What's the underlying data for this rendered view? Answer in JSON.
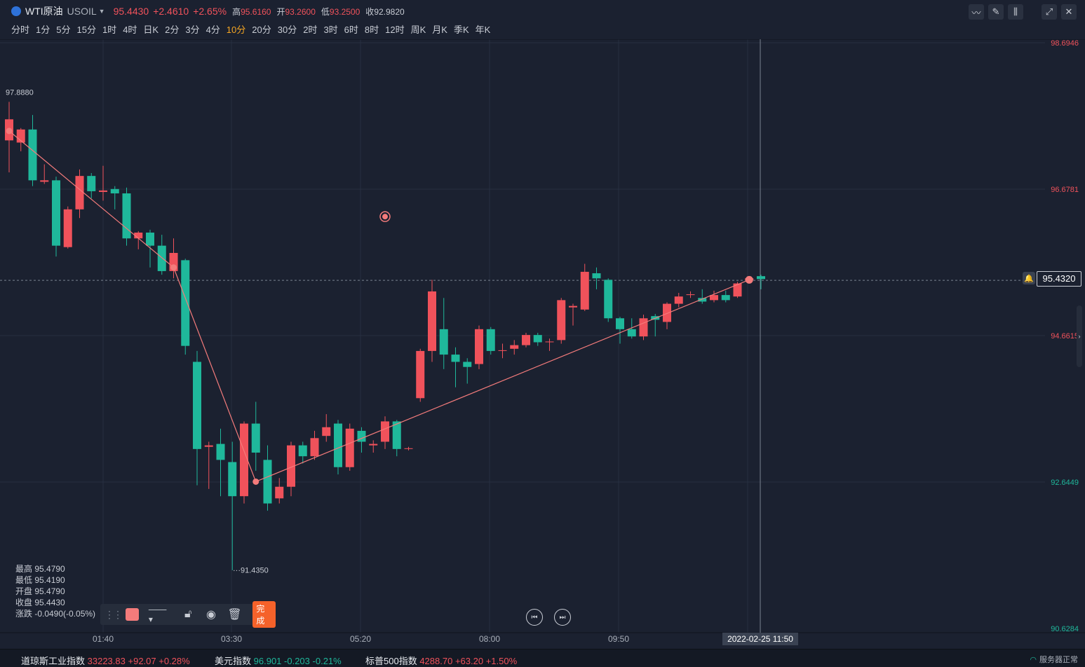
{
  "header": {
    "name": "WTI原油",
    "code": "USOIL",
    "price": "95.4430",
    "change": "+2.4610",
    "change_pct": "+2.65%",
    "high_label": "高",
    "high": "95.6160",
    "open_label": "开",
    "open": "93.2600",
    "low_label": "低",
    "low": "93.2500",
    "close_label": "收",
    "close": "92.9820"
  },
  "periods": [
    "分时",
    "1分",
    "5分",
    "15分",
    "1时",
    "4时",
    "日K",
    "2分",
    "3分",
    "4分",
    "10分",
    "20分",
    "30分",
    "2时",
    "3时",
    "6时",
    "8时",
    "12时",
    "周K",
    "月K",
    "季K",
    "年K"
  ],
  "active_period": "10分",
  "tools": [
    "indicator-icon",
    "draw-icon",
    "candle-type-icon",
    "fullscreen-icon",
    "close-icon"
  ],
  "price_axis": [
    "98.6946",
    "96.6781",
    "94.6615",
    "92.6449",
    "90.6284"
  ],
  "time_axis": [
    "01:40",
    "03:30",
    "05:20",
    "08:00",
    "09:50"
  ],
  "marks": {
    "period_high": "97.8880",
    "period_low": "91.4350"
  },
  "current_price": "95.4320",
  "crosshair_time": "2022-02-25 11:50",
  "ohlc_panel": [
    {
      "label": "最高",
      "value": "95.4790"
    },
    {
      "label": "最低",
      "value": "95.4190"
    },
    {
      "label": "开盘",
      "value": "95.4790"
    },
    {
      "label": "收盘",
      "value": "95.4430"
    },
    {
      "label": "涨跌",
      "value": "-0.0490(-0.05%)"
    }
  ],
  "draw_toolbar": {
    "color": "#f47b7b",
    "done_label": "完成"
  },
  "footer": {
    "items": [
      {
        "name": "道琼斯工业指数",
        "value": "33223.83",
        "chg": "+92.07",
        "pct": "+0.28%",
        "up": true
      },
      {
        "name": "美元指数",
        "value": "96.901",
        "chg": "-0.203",
        "pct": "-0.21%",
        "up": false
      },
      {
        "name": "标普500指数",
        "value": "4288.70",
        "chg": "+63.20",
        "pct": "+1.50%",
        "up": true
      }
    ],
    "server_status": "服务器正常"
  },
  "colors": {
    "up": "#f0525b",
    "down": "#1fb89b",
    "line": "#f47b7b",
    "background": "#1b2130",
    "grid": "#273041"
  },
  "chart_data": {
    "type": "candlestick",
    "ylim": [
      90.6284,
      98.6946
    ],
    "candles": [
      {
        "o": 97.35,
        "c": 97.64,
        "h": 97.88,
        "l": 96.91
      },
      {
        "o": 97.32,
        "c": 97.5,
        "h": 97.52,
        "l": 97.2
      },
      {
        "o": 97.5,
        "c": 96.8,
        "h": 97.7,
        "l": 96.72
      },
      {
        "o": 96.78,
        "c": 96.8,
        "h": 97.02,
        "l": 96.75
      },
      {
        "o": 96.8,
        "c": 95.9,
        "h": 96.85,
        "l": 95.75
      },
      {
        "o": 95.88,
        "c": 96.4,
        "h": 96.44,
        "l": 95.86
      },
      {
        "o": 96.4,
        "c": 96.86,
        "h": 96.95,
        "l": 96.28
      },
      {
        "o": 96.86,
        "c": 96.65,
        "h": 96.9,
        "l": 96.55
      },
      {
        "o": 96.64,
        "c": 96.66,
        "h": 97.0,
        "l": 96.52
      },
      {
        "o": 96.68,
        "c": 96.62,
        "h": 96.72,
        "l": 96.4
      },
      {
        "o": 96.62,
        "c": 96.0,
        "h": 96.7,
        "l": 95.9
      },
      {
        "o": 96.0,
        "c": 96.08,
        "h": 96.1,
        "l": 95.85
      },
      {
        "o": 96.08,
        "c": 95.9,
        "h": 96.12,
        "l": 95.6
      },
      {
        "o": 95.9,
        "c": 95.55,
        "h": 96.05,
        "l": 95.5
      },
      {
        "o": 95.55,
        "c": 95.8,
        "h": 96.0,
        "l": 95.45
      },
      {
        "o": 95.7,
        "c": 94.52,
        "h": 95.72,
        "l": 94.4
      },
      {
        "o": 94.3,
        "c": 93.1,
        "h": 94.45,
        "l": 92.6
      },
      {
        "o": 93.13,
        "c": 93.15,
        "h": 93.2,
        "l": 92.55
      },
      {
        "o": 93.17,
        "c": 92.95,
        "h": 93.38,
        "l": 92.45
      },
      {
        "o": 92.92,
        "c": 92.45,
        "h": 93.2,
        "l": 91.43
      },
      {
        "o": 92.45,
        "c": 93.45,
        "h": 93.48,
        "l": 92.35
      },
      {
        "o": 93.45,
        "c": 93.05,
        "h": 93.75,
        "l": 92.8
      },
      {
        "o": 92.95,
        "c": 92.35,
        "h": 93.15,
        "l": 92.25
      },
      {
        "o": 92.42,
        "c": 92.58,
        "h": 92.7,
        "l": 92.35
      },
      {
        "o": 92.58,
        "c": 93.15,
        "h": 93.2,
        "l": 92.45
      },
      {
        "o": 93.15,
        "c": 93.0,
        "h": 93.2,
        "l": 92.9
      },
      {
        "o": 93.0,
        "c": 93.25,
        "h": 93.35,
        "l": 92.95
      },
      {
        "o": 93.28,
        "c": 93.4,
        "h": 93.58,
        "l": 93.2
      },
      {
        "o": 93.45,
        "c": 92.85,
        "h": 93.5,
        "l": 92.75
      },
      {
        "o": 92.85,
        "c": 93.38,
        "h": 93.45,
        "l": 92.8
      },
      {
        "o": 93.35,
        "c": 93.2,
        "h": 93.4,
        "l": 93.05
      },
      {
        "o": 93.15,
        "c": 93.17,
        "h": 93.22,
        "l": 93.05
      },
      {
        "o": 93.2,
        "c": 93.48,
        "h": 93.55,
        "l": 93.1
      },
      {
        "o": 93.48,
        "c": 93.1,
        "h": 93.5,
        "l": 93.0
      },
      {
        "o": 93.1,
        "c": 93.11,
        "h": 93.13,
        "l": 93.08
      },
      {
        "o": 93.8,
        "c": 94.45,
        "h": 94.48,
        "l": 93.75
      },
      {
        "o": 94.45,
        "c": 95.27,
        "h": 95.43,
        "l": 94.3
      },
      {
        "o": 94.75,
        "c": 94.4,
        "h": 95.18,
        "l": 94.2
      },
      {
        "o": 94.4,
        "c": 94.3,
        "h": 94.5,
        "l": 93.95
      },
      {
        "o": 94.3,
        "c": 94.23,
        "h": 94.35,
        "l": 94.0
      },
      {
        "o": 94.27,
        "c": 94.75,
        "h": 94.8,
        "l": 94.2
      },
      {
        "o": 94.75,
        "c": 94.45,
        "h": 94.78,
        "l": 94.4
      },
      {
        "o": 94.45,
        "c": 94.46,
        "h": 94.55,
        "l": 94.35
      },
      {
        "o": 94.48,
        "c": 94.53,
        "h": 94.6,
        "l": 94.4
      },
      {
        "o": 94.53,
        "c": 94.67,
        "h": 94.7,
        "l": 94.5
      },
      {
        "o": 94.67,
        "c": 94.57,
        "h": 94.7,
        "l": 94.52
      },
      {
        "o": 94.57,
        "c": 94.58,
        "h": 94.62,
        "l": 94.45
      },
      {
        "o": 94.6,
        "c": 95.15,
        "h": 95.18,
        "l": 94.55
      },
      {
        "o": 95.05,
        "c": 95.07,
        "h": 95.1,
        "l": 94.8
      },
      {
        "o": 95.02,
        "c": 95.54,
        "h": 95.65,
        "l": 95.0
      },
      {
        "o": 95.52,
        "c": 95.45,
        "h": 95.6,
        "l": 95.3
      },
      {
        "o": 95.43,
        "c": 94.9,
        "h": 95.45,
        "l": 94.85
      },
      {
        "o": 94.9,
        "c": 94.75,
        "h": 94.92,
        "l": 94.55
      },
      {
        "o": 94.75,
        "c": 94.65,
        "h": 94.9,
        "l": 94.62
      },
      {
        "o": 94.65,
        "c": 94.9,
        "h": 94.95,
        "l": 94.6
      },
      {
        "o": 94.93,
        "c": 94.88,
        "h": 94.96,
        "l": 94.65
      },
      {
        "o": 94.85,
        "c": 95.1,
        "h": 95.12,
        "l": 94.75
      },
      {
        "o": 95.1,
        "c": 95.2,
        "h": 95.25,
        "l": 95.05
      },
      {
        "o": 95.22,
        "c": 95.23,
        "h": 95.27,
        "l": 95.18
      },
      {
        "o": 95.18,
        "c": 95.13,
        "h": 95.3,
        "l": 95.1
      },
      {
        "o": 95.15,
        "c": 95.22,
        "h": 95.28,
        "l": 95.12
      },
      {
        "o": 95.22,
        "c": 95.15,
        "h": 95.28,
        "l": 95.12
      },
      {
        "o": 95.2,
        "c": 95.38,
        "h": 95.4,
        "l": 95.18
      },
      {
        "o": 95.43,
        "c": 95.45,
        "h": 95.48,
        "l": 95.42
      },
      {
        "o": 95.48,
        "c": 95.44,
        "h": 95.5,
        "l": 95.3
      }
    ],
    "trend_line": [
      [
        0,
        97.48
      ],
      [
        14,
        95.6
      ],
      [
        21,
        92.65
      ],
      [
        63,
        95.43
      ]
    ],
    "marker": {
      "index": 32,
      "price": 96.3
    }
  }
}
